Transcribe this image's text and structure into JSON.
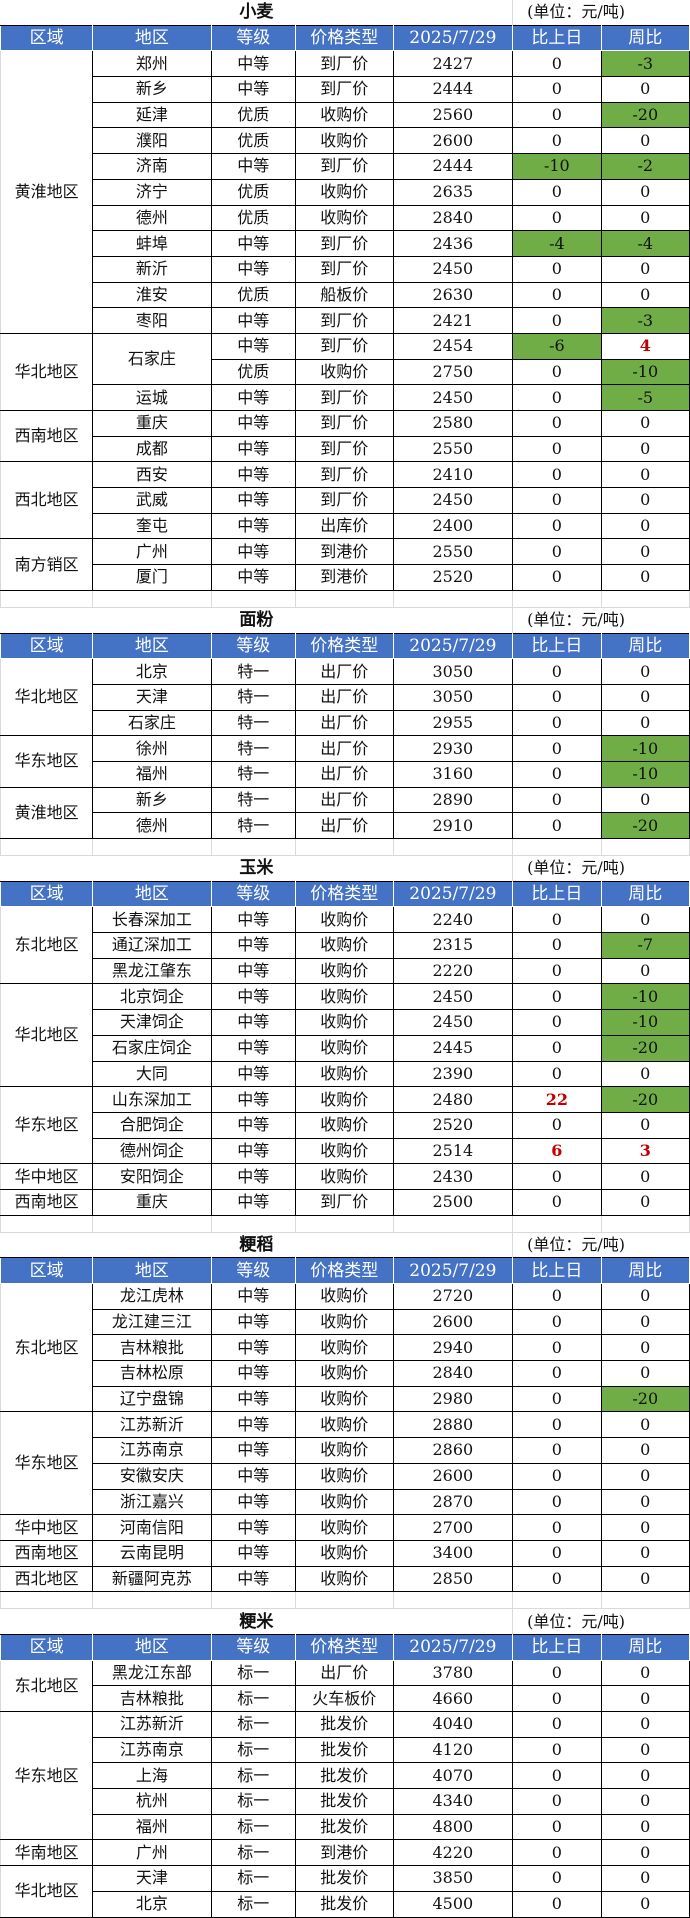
{
  "colors": {
    "header_bg": "#4472C4",
    "decrease_bg": "#70AD47",
    "increase_text": "#C00000"
  },
  "headers": [
    "区域",
    "地区",
    "等级",
    "价格类型",
    "2025/7/29",
    "比上日",
    "周比"
  ],
  "tables": [
    {
      "title": "小麦",
      "unit": "(单位：元/吨)",
      "rows": [
        {
          "region": "黄淮地区",
          "rs": 11,
          "area": "郑州",
          "grade": "中等",
          "ptype": "到厂价",
          "price": "2427",
          "d": "0",
          "w": "-3",
          "ws": "green"
        },
        {
          "area": "新乡",
          "grade": "中等",
          "ptype": "到厂价",
          "price": "2444",
          "d": "0",
          "w": "0"
        },
        {
          "area": "延津",
          "grade": "优质",
          "ptype": "收购价",
          "price": "2560",
          "d": "0",
          "w": "-20",
          "ws": "green"
        },
        {
          "area": "濮阳",
          "grade": "优质",
          "ptype": "收购价",
          "price": "2600",
          "d": "0",
          "w": "0"
        },
        {
          "area": "济南",
          "grade": "中等",
          "ptype": "到厂价",
          "price": "2444",
          "d": "-10",
          "ds": "green",
          "w": "-2",
          "ws": "green"
        },
        {
          "area": "济宁",
          "grade": "优质",
          "ptype": "收购价",
          "price": "2635",
          "d": "0",
          "w": "0"
        },
        {
          "area": "德州",
          "grade": "优质",
          "ptype": "收购价",
          "price": "2840",
          "d": "0",
          "w": "0"
        },
        {
          "area": "蚌埠",
          "grade": "中等",
          "ptype": "到厂价",
          "price": "2436",
          "d": "-4",
          "ds": "green",
          "w": "-4",
          "ws": "green"
        },
        {
          "area": "新沂",
          "grade": "中等",
          "ptype": "到厂价",
          "price": "2450",
          "d": "0",
          "w": "0"
        },
        {
          "area": "淮安",
          "grade": "优质",
          "ptype": "船板价",
          "price": "2630",
          "d": "0",
          "w": "0"
        },
        {
          "area": "枣阳",
          "grade": "中等",
          "ptype": "到厂价",
          "price": "2421",
          "d": "0",
          "w": "-3",
          "ws": "green"
        },
        {
          "region": "华北地区",
          "rs": 3,
          "area": "石家庄",
          "as": 2,
          "grade": "中等",
          "ptype": "到厂价",
          "price": "2454",
          "d": "-6",
          "ds": "green",
          "w": "4",
          "ws": "red"
        },
        {
          "grade": "优质",
          "ptype": "收购价",
          "price": "2750",
          "d": "0",
          "w": "-10",
          "ws": "green"
        },
        {
          "area": "运城",
          "grade": "中等",
          "ptype": "到厂价",
          "price": "2450",
          "d": "0",
          "w": "-5",
          "ws": "green"
        },
        {
          "region": "西南地区",
          "rs": 2,
          "area": "重庆",
          "grade": "中等",
          "ptype": "到厂价",
          "price": "2580",
          "d": "0",
          "w": "0"
        },
        {
          "area": "成都",
          "grade": "中等",
          "ptype": "到厂价",
          "price": "2550",
          "d": "0",
          "w": "0"
        },
        {
          "region": "西北地区",
          "rs": 3,
          "area": "西安",
          "grade": "中等",
          "ptype": "到厂价",
          "price": "2410",
          "d": "0",
          "w": "0"
        },
        {
          "area": "武威",
          "grade": "中等",
          "ptype": "到厂价",
          "price": "2450",
          "d": "0",
          "w": "0"
        },
        {
          "area": "奎屯",
          "grade": "中等",
          "ptype": "出库价",
          "price": "2400",
          "d": "0",
          "w": "0"
        },
        {
          "region": "南方销区",
          "rs": 2,
          "area": "广州",
          "grade": "中等",
          "ptype": "到港价",
          "price": "2550",
          "d": "0",
          "w": "0"
        },
        {
          "area": "厦门",
          "grade": "中等",
          "ptype": "到港价",
          "price": "2520",
          "d": "0",
          "w": "0"
        }
      ]
    },
    {
      "title": "面粉",
      "unit": "(单位：元/吨)",
      "rows": [
        {
          "region": "华北地区",
          "rs": 3,
          "area": "北京",
          "grade": "特一",
          "ptype": "出厂价",
          "price": "3050",
          "d": "0",
          "w": "0"
        },
        {
          "area": "天津",
          "grade": "特一",
          "ptype": "出厂价",
          "price": "3050",
          "d": "0",
          "w": "0"
        },
        {
          "area": "石家庄",
          "grade": "特一",
          "ptype": "出厂价",
          "price": "2955",
          "d": "0",
          "w": "0"
        },
        {
          "region": "华东地区",
          "rs": 2,
          "area": "徐州",
          "grade": "特一",
          "ptype": "出厂价",
          "price": "2930",
          "d": "0",
          "w": "-10",
          "ws": "green"
        },
        {
          "area": "福州",
          "grade": "特一",
          "ptype": "出厂价",
          "price": "3160",
          "d": "0",
          "w": "-10",
          "ws": "green"
        },
        {
          "region": "黄淮地区",
          "rs": 2,
          "area": "新乡",
          "grade": "特一",
          "ptype": "出厂价",
          "price": "2890",
          "d": "0",
          "w": "0"
        },
        {
          "area": "德州",
          "grade": "特一",
          "ptype": "出厂价",
          "price": "2910",
          "d": "0",
          "w": "-20",
          "ws": "green"
        }
      ]
    },
    {
      "title": "玉米",
      "unit": "(单位：元/吨)",
      "rows": [
        {
          "region": "东北地区",
          "rs": 3,
          "area": "长春深加工",
          "grade": "中等",
          "ptype": "收购价",
          "price": "2240",
          "d": "0",
          "w": "0"
        },
        {
          "area": "通辽深加工",
          "grade": "中等",
          "ptype": "收购价",
          "price": "2315",
          "d": "0",
          "w": "-7",
          "ws": "green"
        },
        {
          "area": "黑龙江肇东",
          "grade": "中等",
          "ptype": "收购价",
          "price": "2220",
          "d": "0",
          "w": "0"
        },
        {
          "region": "华北地区",
          "rs": 4,
          "area": "北京饲企",
          "grade": "中等",
          "ptype": "收购价",
          "price": "2450",
          "d": "0",
          "w": "-10",
          "ws": "green"
        },
        {
          "area": "天津饲企",
          "grade": "中等",
          "ptype": "收购价",
          "price": "2450",
          "d": "0",
          "w": "-10",
          "ws": "green"
        },
        {
          "area": "石家庄饲企",
          "grade": "中等",
          "ptype": "收购价",
          "price": "2445",
          "d": "0",
          "w": "-20",
          "ws": "green"
        },
        {
          "area": "大同",
          "grade": "中等",
          "ptype": "收购价",
          "price": "2390",
          "d": "0",
          "w": "0"
        },
        {
          "region": "华东地区",
          "rs": 3,
          "area": "山东深加工",
          "grade": "中等",
          "ptype": "收购价",
          "price": "2480",
          "d": "22",
          "ds": "red",
          "w": "-20",
          "ws": "green"
        },
        {
          "area": "合肥饲企",
          "grade": "中等",
          "ptype": "收购价",
          "price": "2520",
          "d": "0",
          "w": "0"
        },
        {
          "area": "德州饲企",
          "grade": "中等",
          "ptype": "收购价",
          "price": "2514",
          "d": "6",
          "ds": "red",
          "w": "3",
          "ws": "red"
        },
        {
          "region": "华中地区",
          "rs": 1,
          "area": "安阳饲企",
          "grade": "中等",
          "ptype": "收购价",
          "price": "2430",
          "d": "0",
          "w": "0"
        },
        {
          "region": "西南地区",
          "rs": 1,
          "area": "重庆",
          "grade": "中等",
          "ptype": "到厂价",
          "price": "2500",
          "d": "0",
          "w": "0"
        }
      ]
    },
    {
      "title": "粳稻",
      "unit": "(单位：元/吨)",
      "rows": [
        {
          "region": "东北地区",
          "rs": 5,
          "area": "龙江虎林",
          "grade": "中等",
          "ptype": "收购价",
          "price": "2720",
          "d": "0",
          "w": "0"
        },
        {
          "area": "龙江建三江",
          "grade": "中等",
          "ptype": "收购价",
          "price": "2600",
          "d": "0",
          "w": "0"
        },
        {
          "area": "吉林粮批",
          "grade": "中等",
          "ptype": "收购价",
          "price": "2940",
          "d": "0",
          "w": "0"
        },
        {
          "area": "吉林松原",
          "grade": "中等",
          "ptype": "收购价",
          "price": "2840",
          "d": "0",
          "w": "0"
        },
        {
          "area": "辽宁盘锦",
          "grade": "中等",
          "ptype": "收购价",
          "price": "2980",
          "d": "0",
          "w": "-20",
          "ws": "green"
        },
        {
          "region": "华东地区",
          "rs": 4,
          "area": "江苏新沂",
          "grade": "中等",
          "ptype": "收购价",
          "price": "2880",
          "d": "0",
          "w": "0"
        },
        {
          "area": "江苏南京",
          "grade": "中等",
          "ptype": "收购价",
          "price": "2860",
          "d": "0",
          "w": "0"
        },
        {
          "area": "安徽安庆",
          "grade": "中等",
          "ptype": "收购价",
          "price": "2600",
          "d": "0",
          "w": "0"
        },
        {
          "area": "浙江嘉兴",
          "grade": "中等",
          "ptype": "收购价",
          "price": "2870",
          "d": "0",
          "w": "0"
        },
        {
          "region": "华中地区",
          "rs": 1,
          "area": "河南信阳",
          "grade": "中等",
          "ptype": "收购价",
          "price": "2700",
          "d": "0",
          "w": "0"
        },
        {
          "region": "西南地区",
          "rs": 1,
          "area": "云南昆明",
          "grade": "中等",
          "ptype": "收购价",
          "price": "3400",
          "d": "0",
          "w": "0"
        },
        {
          "region": "西北地区",
          "rs": 1,
          "area": "新疆阿克苏",
          "grade": "中等",
          "ptype": "收购价",
          "price": "2850",
          "d": "0",
          "w": "0"
        }
      ]
    },
    {
      "title": "粳米",
      "unit": "(单位：元/吨)",
      "rows": [
        {
          "region": "东北地区",
          "rs": 2,
          "area": "黑龙江东部",
          "grade": "标一",
          "ptype": "出厂价",
          "price": "3780",
          "d": "0",
          "w": "0"
        },
        {
          "area": "吉林粮批",
          "grade": "标一",
          "ptype": "火车板价",
          "price": "4660",
          "d": "0",
          "w": "0"
        },
        {
          "region": "华东地区",
          "rs": 5,
          "area": "江苏新沂",
          "grade": "标一",
          "ptype": "批发价",
          "price": "4040",
          "d": "0",
          "w": "0"
        },
        {
          "area": "江苏南京",
          "grade": "标一",
          "ptype": "批发价",
          "price": "4120",
          "d": "0",
          "w": "0"
        },
        {
          "area": "上海",
          "grade": "标一",
          "ptype": "批发价",
          "price": "4070",
          "d": "0",
          "w": "0"
        },
        {
          "area": "杭州",
          "grade": "标一",
          "ptype": "批发价",
          "price": "4340",
          "d": "0",
          "w": "0"
        },
        {
          "area": "福州",
          "grade": "标一",
          "ptype": "批发价",
          "price": "4800",
          "d": "0",
          "w": "0"
        },
        {
          "region": "华南地区",
          "rs": 1,
          "area": "广州",
          "grade": "标一",
          "ptype": "到港价",
          "price": "4220",
          "d": "0",
          "w": "0"
        },
        {
          "region": "华北地区",
          "rs": 2,
          "area": "天津",
          "grade": "标一",
          "ptype": "批发价",
          "price": "3850",
          "d": "0",
          "w": "0"
        },
        {
          "area": "北京",
          "grade": "标一",
          "ptype": "批发价",
          "price": "4500",
          "d": "0",
          "w": "0"
        }
      ]
    }
  ]
}
